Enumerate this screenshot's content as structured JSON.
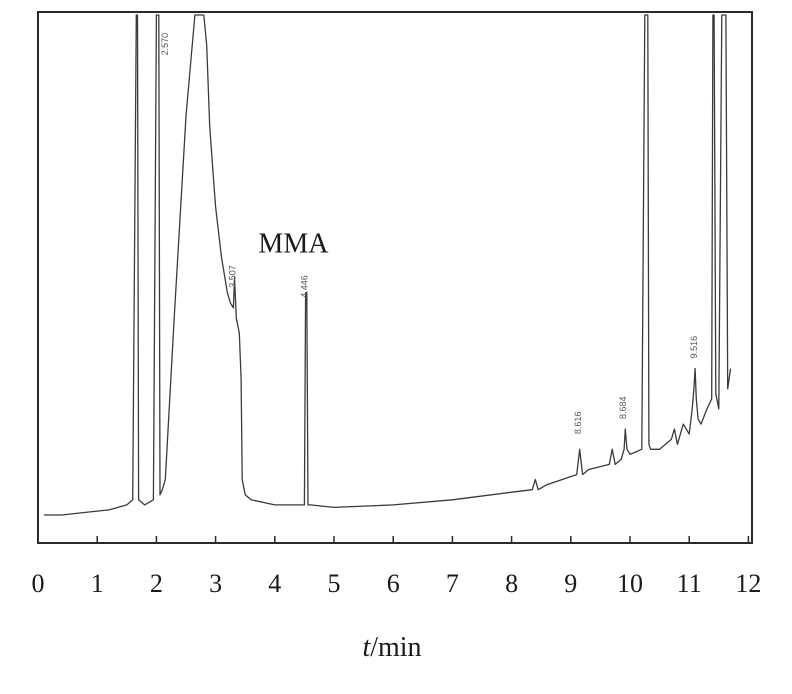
{
  "chart_data": {
    "type": "line",
    "title": "",
    "xlabel": {
      "var": "t",
      "unit": "/min"
    },
    "ylabel": "",
    "xlim": [
      0,
      12
    ],
    "ylim": [
      0,
      100
    ],
    "xticks": [
      "0",
      "1",
      "2",
      "3",
      "4",
      "5",
      "6",
      "7",
      "8",
      "9",
      "10",
      "11",
      "12"
    ],
    "grid": false,
    "annotations": [
      {
        "text": "MMA",
        "x": 4.45,
        "y": 55
      }
    ],
    "peak_labels": [
      {
        "text": "3.507",
        "x": 3.34,
        "y": 46
      },
      {
        "text": "4.446",
        "x": 4.55,
        "y": 44
      },
      {
        "text": "8.616",
        "x": 9.17,
        "y": 17
      },
      {
        "text": "8.684",
        "x": 9.93,
        "y": 20
      },
      {
        "text": "9.516",
        "x": 11.13,
        "y": 32
      },
      {
        "text": "2.570",
        "x": 2.2,
        "y": 92
      }
    ],
    "series": [
      {
        "x": [
          0.1,
          0.4,
          0.8,
          1.2,
          1.5,
          1.6,
          1.66,
          1.68,
          1.7,
          1.8,
          1.95,
          2.0,
          2.02,
          2.04,
          2.06,
          2.1,
          2.15,
          2.3,
          2.5,
          2.65,
          2.72,
          2.8,
          2.85,
          2.9,
          2.95,
          3.0,
          3.1,
          3.2,
          3.25,
          3.3,
          3.32,
          3.35,
          3.4,
          3.43,
          3.45,
          3.5,
          3.6,
          4.0,
          4.5,
          4.52,
          4.54,
          4.56,
          4.6,
          5.0,
          6.0,
          7.0,
          8.0,
          8.35,
          8.4,
          8.45,
          8.6,
          9.1,
          9.15,
          9.2,
          9.3,
          9.65,
          9.7,
          9.75,
          9.85,
          9.9,
          9.92,
          9.95,
          10.0,
          10.2,
          10.25,
          10.27,
          10.3,
          10.32,
          10.35,
          10.5,
          10.7,
          10.75,
          10.8,
          10.9,
          11.0,
          11.05,
          11.08,
          11.1,
          11.12,
          11.15,
          11.2,
          11.3,
          11.38,
          11.4,
          11.42,
          11.45,
          11.5,
          11.55,
          11.6,
          11.62,
          11.65,
          11.7
        ],
        "y": [
          1,
          1,
          1.5,
          2,
          3,
          4,
          100,
          100,
          4,
          3,
          4,
          100,
          100,
          100,
          5,
          6,
          8,
          40,
          80,
          100,
          100,
          100,
          94,
          78,
          70,
          62,
          52,
          45,
          43,
          42,
          48,
          40,
          37,
          28,
          8,
          5,
          4,
          3,
          3,
          45,
          45,
          3,
          3,
          2.5,
          3,
          4,
          5.5,
          6,
          8,
          6,
          7,
          9,
          14,
          9,
          10,
          11,
          14,
          11,
          12,
          14,
          18,
          14,
          13,
          14,
          100,
          100,
          100,
          15,
          14,
          14,
          16,
          18,
          15,
          19,
          17,
          22,
          26,
          30,
          24,
          20,
          19,
          22,
          24,
          100,
          100,
          25,
          22,
          100,
          100,
          100,
          26,
          30
        ]
      }
    ]
  }
}
